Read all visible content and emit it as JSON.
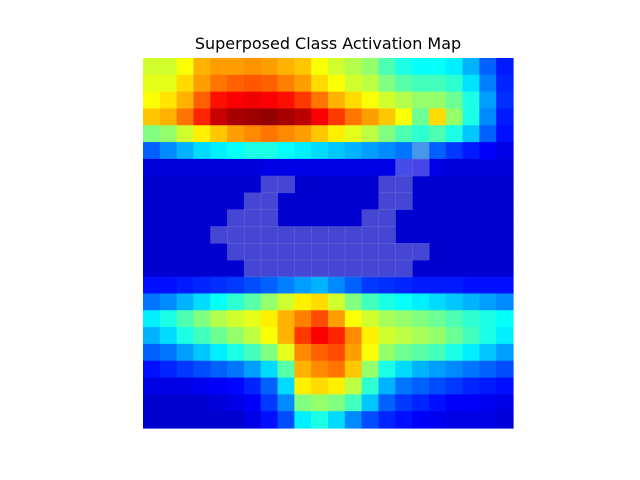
{
  "chart_data": {
    "type": "heatmap",
    "title": "Superposed Class Activation Map",
    "colormap": "jet",
    "axes": "off",
    "rows": 22,
    "cols": 22,
    "value_range": [
      0,
      1
    ],
    "values": [
      [
        0.58,
        0.58,
        0.62,
        0.7,
        0.72,
        0.72,
        0.73,
        0.72,
        0.7,
        0.68,
        0.62,
        0.58,
        0.55,
        0.52,
        0.45,
        0.4,
        0.38,
        0.38,
        0.36,
        0.3,
        0.22,
        0.15
      ],
      [
        0.6,
        0.6,
        0.66,
        0.72,
        0.76,
        0.78,
        0.79,
        0.78,
        0.75,
        0.72,
        0.66,
        0.62,
        0.58,
        0.56,
        0.5,
        0.46,
        0.44,
        0.44,
        0.42,
        0.35,
        0.25,
        0.16
      ],
      [
        0.62,
        0.65,
        0.7,
        0.78,
        0.86,
        0.88,
        0.89,
        0.88,
        0.86,
        0.82,
        0.76,
        0.7,
        0.66,
        0.62,
        0.58,
        0.55,
        0.52,
        0.52,
        0.48,
        0.4,
        0.28,
        0.17
      ],
      [
        0.68,
        0.7,
        0.76,
        0.84,
        0.93,
        0.96,
        0.97,
        0.98,
        0.96,
        0.94,
        0.88,
        0.82,
        0.76,
        0.72,
        0.68,
        0.62,
        0.48,
        0.66,
        0.52,
        0.4,
        0.26,
        0.15
      ],
      [
        0.5,
        0.52,
        0.58,
        0.64,
        0.68,
        0.72,
        0.74,
        0.76,
        0.74,
        0.72,
        0.68,
        0.64,
        0.6,
        0.56,
        0.5,
        0.45,
        0.42,
        0.45,
        0.4,
        0.32,
        0.22,
        0.14
      ],
      [
        0.22,
        0.26,
        0.3,
        0.34,
        0.36,
        0.38,
        0.4,
        0.4,
        0.38,
        0.36,
        0.34,
        0.32,
        0.3,
        0.28,
        0.26,
        0.24,
        0.3,
        0.22,
        0.18,
        0.15,
        0.12,
        0.1
      ],
      [
        0.09,
        0.09,
        0.09,
        0.09,
        0.09,
        0.09,
        0.09,
        0.1,
        0.1,
        0.1,
        0.1,
        0.1,
        0.1,
        0.1,
        0.1,
        0.14,
        0.12,
        0.1,
        0.09,
        0.09,
        0.09,
        0.09
      ],
      [
        0.08,
        0.08,
        0.08,
        0.08,
        0.08,
        0.08,
        0.08,
        0.08,
        0.08,
        0.08,
        0.08,
        0.08,
        0.08,
        0.08,
        0.08,
        0.08,
        0.08,
        0.08,
        0.08,
        0.08,
        0.08,
        0.08
      ],
      [
        0.08,
        0.08,
        0.08,
        0.08,
        0.08,
        0.08,
        0.08,
        0.08,
        0.08,
        0.08,
        0.08,
        0.08,
        0.08,
        0.08,
        0.08,
        0.08,
        0.08,
        0.08,
        0.08,
        0.08,
        0.08,
        0.08
      ],
      [
        0.08,
        0.08,
        0.08,
        0.08,
        0.08,
        0.08,
        0.08,
        0.08,
        0.08,
        0.08,
        0.08,
        0.08,
        0.08,
        0.08,
        0.08,
        0.08,
        0.08,
        0.08,
        0.08,
        0.08,
        0.08,
        0.08
      ],
      [
        0.08,
        0.08,
        0.08,
        0.08,
        0.08,
        0.08,
        0.08,
        0.08,
        0.08,
        0.08,
        0.08,
        0.08,
        0.08,
        0.08,
        0.08,
        0.08,
        0.08,
        0.08,
        0.08,
        0.08,
        0.08,
        0.08
      ],
      [
        0.08,
        0.08,
        0.08,
        0.08,
        0.08,
        0.08,
        0.08,
        0.08,
        0.08,
        0.08,
        0.08,
        0.08,
        0.08,
        0.08,
        0.08,
        0.08,
        0.08,
        0.08,
        0.08,
        0.08,
        0.08,
        0.08
      ],
      [
        0.08,
        0.08,
        0.08,
        0.08,
        0.08,
        0.08,
        0.08,
        0.08,
        0.08,
        0.08,
        0.08,
        0.08,
        0.08,
        0.08,
        0.08,
        0.08,
        0.08,
        0.08,
        0.08,
        0.08,
        0.08,
        0.08
      ],
      [
        0.14,
        0.14,
        0.15,
        0.16,
        0.17,
        0.18,
        0.2,
        0.22,
        0.25,
        0.28,
        0.3,
        0.26,
        0.22,
        0.18,
        0.17,
        0.16,
        0.15,
        0.15,
        0.15,
        0.14,
        0.14,
        0.14
      ],
      [
        0.24,
        0.26,
        0.3,
        0.34,
        0.38,
        0.42,
        0.46,
        0.52,
        0.58,
        0.64,
        0.66,
        0.58,
        0.5,
        0.44,
        0.4,
        0.38,
        0.36,
        0.34,
        0.32,
        0.3,
        0.28,
        0.26
      ],
      [
        0.36,
        0.4,
        0.45,
        0.5,
        0.55,
        0.58,
        0.6,
        0.64,
        0.7,
        0.75,
        0.8,
        0.72,
        0.62,
        0.58,
        0.54,
        0.52,
        0.5,
        0.48,
        0.45,
        0.42,
        0.4,
        0.38
      ],
      [
        0.3,
        0.34,
        0.4,
        0.44,
        0.48,
        0.52,
        0.56,
        0.62,
        0.7,
        0.82,
        0.88,
        0.84,
        0.74,
        0.64,
        0.58,
        0.56,
        0.54,
        0.52,
        0.48,
        0.44,
        0.4,
        0.36
      ],
      [
        0.22,
        0.24,
        0.28,
        0.32,
        0.36,
        0.4,
        0.44,
        0.5,
        0.6,
        0.74,
        0.78,
        0.8,
        0.72,
        0.62,
        0.52,
        0.48,
        0.46,
        0.44,
        0.4,
        0.36,
        0.32,
        0.28
      ],
      [
        0.14,
        0.16,
        0.18,
        0.2,
        0.22,
        0.24,
        0.28,
        0.34,
        0.46,
        0.7,
        0.74,
        0.76,
        0.68,
        0.52,
        0.4,
        0.34,
        0.3,
        0.28,
        0.26,
        0.24,
        0.22,
        0.2
      ],
      [
        0.1,
        0.1,
        0.1,
        0.11,
        0.12,
        0.13,
        0.16,
        0.22,
        0.34,
        0.64,
        0.66,
        0.64,
        0.56,
        0.42,
        0.3,
        0.24,
        0.22,
        0.2,
        0.18,
        0.16,
        0.15,
        0.14
      ],
      [
        0.08,
        0.08,
        0.08,
        0.08,
        0.09,
        0.1,
        0.12,
        0.18,
        0.26,
        0.5,
        0.52,
        0.5,
        0.44,
        0.32,
        0.22,
        0.18,
        0.16,
        0.14,
        0.12,
        0.12,
        0.11,
        0.1
      ],
      [
        0.08,
        0.08,
        0.08,
        0.08,
        0.08,
        0.08,
        0.1,
        0.14,
        0.2,
        0.36,
        0.4,
        0.34,
        0.26,
        0.2,
        0.16,
        0.14,
        0.12,
        0.11,
        0.1,
        0.1,
        0.1,
        0.09
      ]
    ],
    "overlay_mask": [
      [
        0,
        0,
        0,
        0,
        0,
        0,
        0,
        0,
        0,
        0,
        0,
        0,
        0,
        0,
        0,
        0,
        0,
        0,
        0,
        0,
        0,
        0
      ],
      [
        0,
        0,
        0,
        0,
        0,
        0,
        0,
        0,
        0,
        0,
        0,
        0,
        0,
        0,
        0,
        0,
        0,
        0,
        0,
        0,
        0,
        0
      ],
      [
        0,
        0,
        0,
        0,
        0,
        0,
        0,
        0,
        0,
        0,
        0,
        0,
        0,
        0,
        0,
        0,
        0,
        0,
        0,
        0,
        0,
        0
      ],
      [
        0,
        0,
        0,
        0,
        0,
        0,
        0,
        0,
        0,
        0,
        0,
        0,
        0,
        0,
        0,
        0,
        0,
        0,
        0,
        0,
        0,
        0
      ],
      [
        0,
        0,
        0,
        0,
        0,
        0,
        0,
        0,
        0,
        0,
        0,
        0,
        0,
        0,
        0,
        0,
        0,
        0,
        0,
        0,
        0,
        0
      ],
      [
        0,
        0,
        0,
        0,
        0,
        0,
        0,
        0,
        0,
        0,
        0,
        0,
        0,
        0,
        0,
        0,
        1,
        0,
        0,
        0,
        0,
        0
      ],
      [
        0,
        0,
        0,
        0,
        0,
        0,
        0,
        0,
        0,
        0,
        0,
        0,
        0,
        0,
        0,
        1,
        1,
        0,
        0,
        0,
        0,
        0
      ],
      [
        0,
        0,
        0,
        0,
        0,
        0,
        0,
        1,
        1,
        0,
        0,
        0,
        0,
        0,
        1,
        1,
        0,
        0,
        0,
        0,
        0,
        0
      ],
      [
        0,
        0,
        0,
        0,
        0,
        0,
        1,
        1,
        0,
        0,
        0,
        0,
        0,
        0,
        1,
        1,
        0,
        0,
        0,
        0,
        0,
        0
      ],
      [
        0,
        0,
        0,
        0,
        0,
        1,
        1,
        1,
        0,
        0,
        0,
        0,
        0,
        1,
        1,
        0,
        0,
        0,
        0,
        0,
        0,
        0
      ],
      [
        0,
        0,
        0,
        0,
        1,
        1,
        1,
        1,
        1,
        1,
        1,
        1,
        1,
        1,
        1,
        0,
        0,
        0,
        0,
        0,
        0,
        0
      ],
      [
        0,
        0,
        0,
        0,
        0,
        1,
        1,
        1,
        1,
        1,
        1,
        1,
        1,
        1,
        1,
        1,
        1,
        0,
        0,
        0,
        0,
        0
      ],
      [
        0,
        0,
        0,
        0,
        0,
        0,
        1,
        1,
        1,
        1,
        1,
        1,
        1,
        1,
        1,
        1,
        0,
        0,
        0,
        0,
        0,
        0
      ],
      [
        0,
        0,
        0,
        0,
        0,
        0,
        0,
        0,
        0,
        0,
        0,
        0,
        0,
        0,
        0,
        0,
        0,
        0,
        0,
        0,
        0,
        0
      ],
      [
        0,
        0,
        0,
        0,
        0,
        0,
        0,
        0,
        0,
        0,
        0,
        0,
        0,
        0,
        0,
        0,
        0,
        0,
        0,
        0,
        0,
        0
      ],
      [
        0,
        0,
        0,
        0,
        0,
        0,
        0,
        0,
        0,
        0,
        0,
        0,
        0,
        0,
        0,
        0,
        0,
        0,
        0,
        0,
        0,
        0
      ],
      [
        0,
        0,
        0,
        0,
        0,
        0,
        0,
        0,
        0,
        0,
        0,
        0,
        0,
        0,
        0,
        0,
        0,
        0,
        0,
        0,
        0,
        0
      ],
      [
        0,
        0,
        0,
        0,
        0,
        0,
        0,
        0,
        0,
        0,
        0,
        0,
        0,
        0,
        0,
        0,
        0,
        0,
        0,
        0,
        0,
        0
      ],
      [
        0,
        0,
        0,
        0,
        0,
        0,
        0,
        0,
        0,
        0,
        0,
        0,
        0,
        0,
        0,
        0,
        0,
        0,
        0,
        0,
        0,
        0
      ],
      [
        0,
        0,
        0,
        0,
        0,
        0,
        0,
        0,
        0,
        0,
        0,
        0,
        0,
        0,
        0,
        0,
        0,
        0,
        0,
        0,
        0,
        0
      ],
      [
        0,
        0,
        0,
        0,
        0,
        0,
        0,
        0,
        0,
        0,
        0,
        0,
        0,
        0,
        0,
        0,
        0,
        0,
        0,
        0,
        0,
        0
      ],
      [
        0,
        0,
        0,
        0,
        0,
        0,
        0,
        0,
        0,
        0,
        0,
        0,
        0,
        0,
        0,
        0,
        0,
        0,
        0,
        0,
        0,
        0
      ]
    ],
    "overlay_color": "#7f7fd8"
  }
}
